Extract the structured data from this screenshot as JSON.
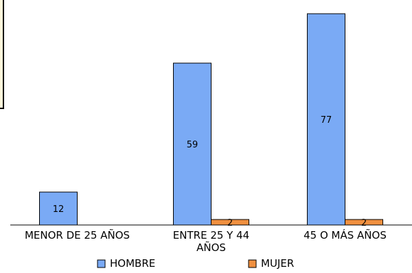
{
  "chart_data": {
    "type": "bar",
    "categories": [
      "MENOR DE 25 AÑOS",
      "ENTRE 25 Y 44 AÑOS",
      "45 O MÁS AÑOS"
    ],
    "category_label_lines": [
      [
        "MENOR DE 25 AÑOS"
      ],
      [
        "ENTRE 25 Y 44",
        "AÑOS"
      ],
      [
        "45 O MÁS AÑOS"
      ]
    ],
    "series": [
      {
        "name": "HOMBRE",
        "values": [
          12,
          59,
          77
        ],
        "color": "#7aaaf5",
        "labels": [
          "12",
          "59",
          "77"
        ]
      },
      {
        "name": "MUJER",
        "values": [
          0,
          2,
          2
        ],
        "color": "#f09040",
        "labels": [
          "",
          "2",
          "2"
        ]
      }
    ],
    "legend_position": "bottom",
    "grid": false,
    "ylim": [
      0,
      80
    ]
  }
}
